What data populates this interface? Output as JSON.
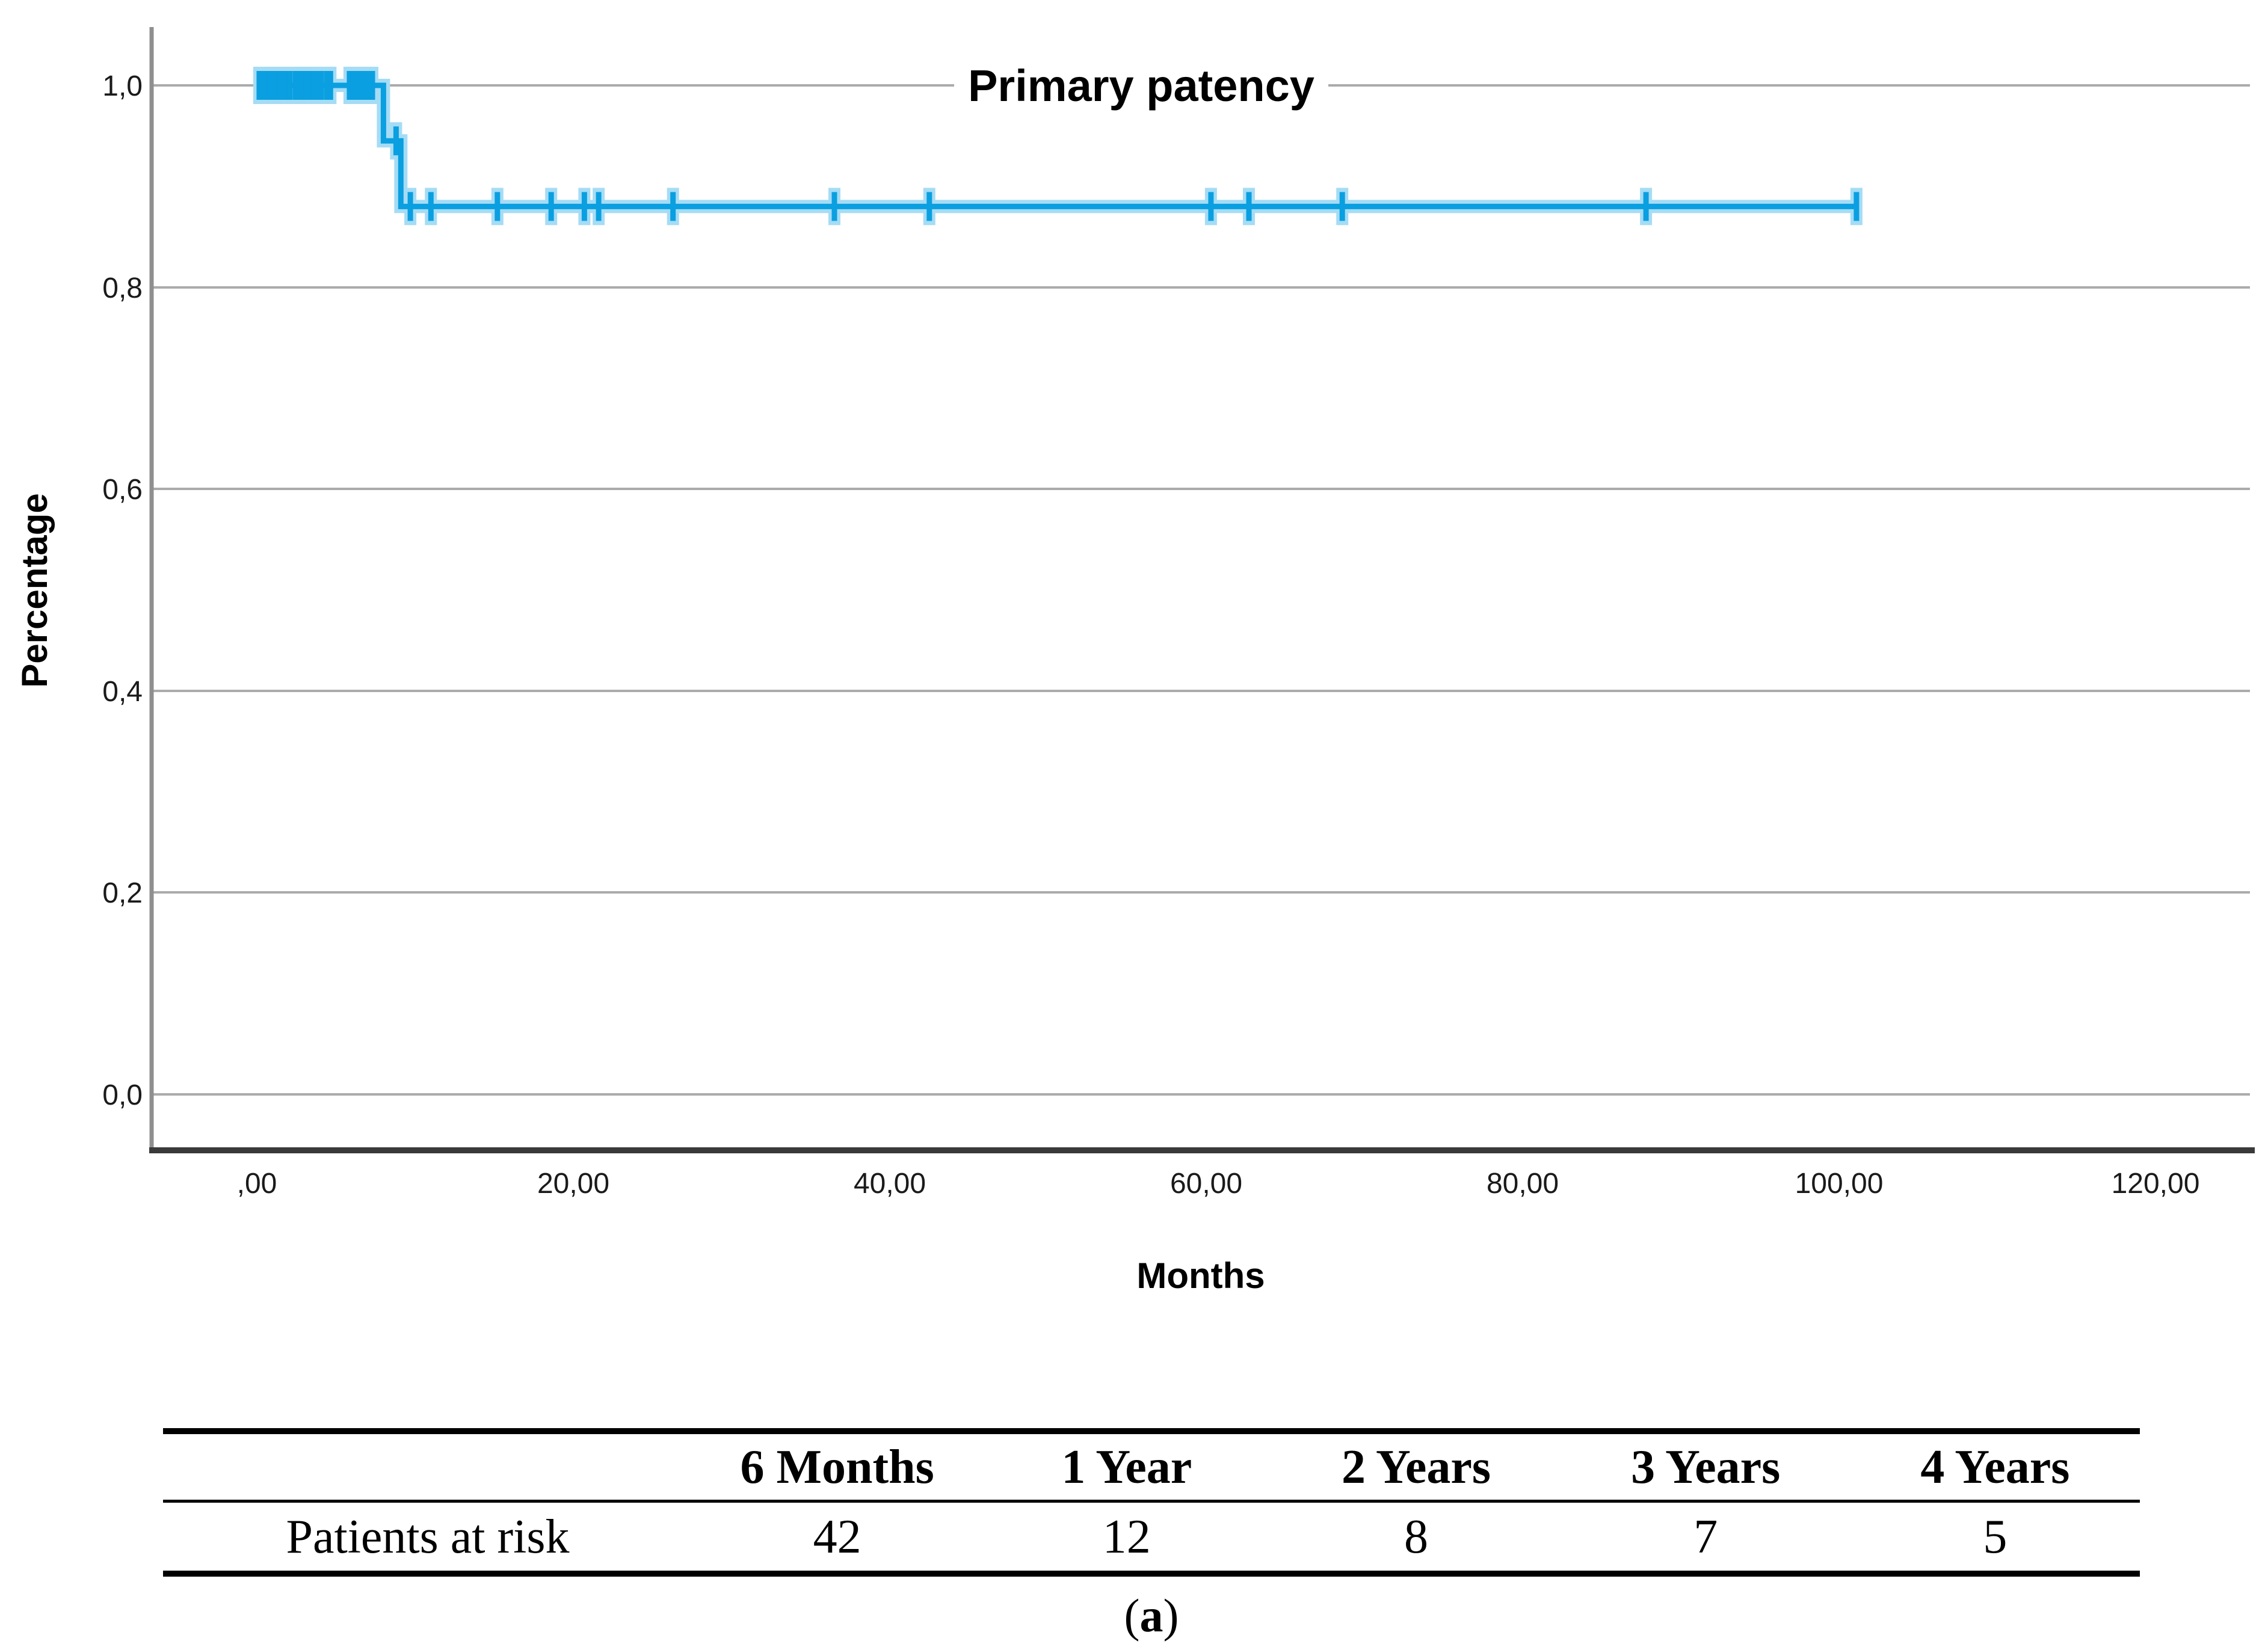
{
  "figure": {
    "caption_open": "(",
    "caption_letter": "a",
    "caption_close": ")"
  },
  "chart_data": {
    "type": "line",
    "subtype": "kaplan-meier-step-function",
    "title": "Primary patency",
    "xlabel": "Months",
    "ylabel": "Percentage",
    "grid": "horizontal",
    "legend_position": "none",
    "xlim": [
      0,
      120
    ],
    "ylim": [
      0.0,
      1.0
    ],
    "x_ticks": [
      0,
      20,
      40,
      60,
      80,
      100,
      120
    ],
    "x_tick_labels": [
      ",00",
      "20,00",
      "40,00",
      "60,00",
      "80,00",
      "100,00",
      "120,00"
    ],
    "y_ticks": [
      0.0,
      0.2,
      0.4,
      0.6,
      0.8,
      1.0
    ],
    "y_tick_labels": [
      "0,0",
      "0,2",
      "0,4",
      "0,6",
      "0,8",
      "1,0"
    ],
    "series": [
      {
        "name": "Primary patency",
        "color": "#0a9fe0",
        "halo_color": "#a5dcf5",
        "steps": [
          [
            0,
            1.0
          ],
          [
            8.0,
            1.0
          ],
          [
            8.0,
            0.945
          ],
          [
            9.1,
            0.945
          ],
          [
            9.1,
            0.88
          ],
          [
            101.1,
            0.88
          ]
        ],
        "censor_marks": [
          [
            0.15,
            1.0
          ],
          [
            0.25,
            1.0
          ],
          [
            0.35,
            1.0
          ],
          [
            0.45,
            1.0
          ],
          [
            0.55,
            1.0
          ],
          [
            0.65,
            1.0
          ],
          [
            0.75,
            1.0
          ],
          [
            0.85,
            1.0
          ],
          [
            0.95,
            1.0
          ],
          [
            1.05,
            1.0
          ],
          [
            1.2,
            1.0
          ],
          [
            1.5,
            1.0
          ],
          [
            1.8,
            1.0
          ],
          [
            2.1,
            1.0
          ],
          [
            2.45,
            1.0
          ],
          [
            2.6,
            1.0
          ],
          [
            2.75,
            1.0
          ],
          [
            2.9,
            1.0
          ],
          [
            3.05,
            1.0
          ],
          [
            3.25,
            1.0
          ],
          [
            3.45,
            1.0
          ],
          [
            3.6,
            1.0
          ],
          [
            3.75,
            1.0
          ],
          [
            3.9,
            1.0
          ],
          [
            4.05,
            1.0
          ],
          [
            4.4,
            1.0
          ],
          [
            4.65,
            1.0
          ],
          [
            5.85,
            1.0
          ],
          [
            6.1,
            1.0
          ],
          [
            6.4,
            1.0
          ],
          [
            6.7,
            1.0
          ],
          [
            7.0,
            1.0
          ],
          [
            7.3,
            1.0
          ],
          [
            8.8,
            0.945
          ],
          [
            9.7,
            0.88
          ],
          [
            11.0,
            0.88
          ],
          [
            15.2,
            0.88
          ],
          [
            18.6,
            0.88
          ],
          [
            20.7,
            0.88
          ],
          [
            21.6,
            0.88
          ],
          [
            26.3,
            0.88
          ],
          [
            36.5,
            0.88
          ],
          [
            42.5,
            0.88
          ],
          [
            60.3,
            0.88
          ],
          [
            62.7,
            0.88
          ],
          [
            68.6,
            0.88
          ],
          [
            87.8,
            0.88
          ],
          [
            101.1,
            0.88
          ]
        ]
      }
    ]
  },
  "risk_table": {
    "row_label": "Patients at risk",
    "headers": [
      "6 Months",
      "1 Year",
      "2 Years",
      "3 Years",
      "4 Years"
    ],
    "values": [
      "42",
      "12",
      "8",
      "7",
      "5"
    ]
  }
}
